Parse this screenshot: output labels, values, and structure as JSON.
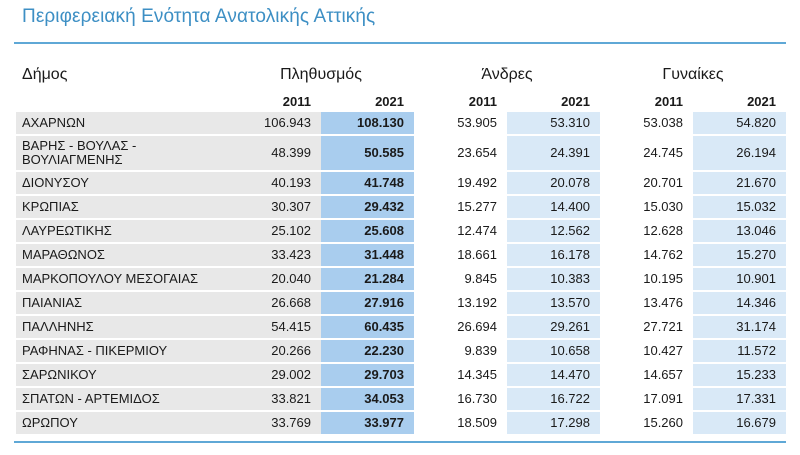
{
  "title": "Περιφερειακή Ενότητα Ανατολικής Αττικής",
  "headers": {
    "municipality": "Δήμος",
    "population": "Πληθυσμός",
    "men": "Άνδρες",
    "women": "Γυναίκες",
    "year_a": "2011",
    "year_b": "2021"
  },
  "colors": {
    "title": "#3d8fc4",
    "rule": "#5fa8d6",
    "pop2021_fill": "#a9cdee",
    "light_blue_fill": "#d9e9f7",
    "grey_fill": "#e8e8e8"
  },
  "rows": [
    {
      "name": "ΑΧΑΡΝΩΝ",
      "pop2011": "106.943",
      "pop2021": "108.130",
      "men2011": "53.905",
      "men2021": "53.310",
      "women2011": "53.038",
      "women2021": "54.820"
    },
    {
      "name": "ΒΑΡΗΣ - ΒΟΥΛΑΣ - ΒΟΥΛΙΑΓΜΕΝΗΣ",
      "pop2011": "48.399",
      "pop2021": "50.585",
      "men2011": "23.654",
      "men2021": "24.391",
      "women2011": "24.745",
      "women2021": "26.194"
    },
    {
      "name": "ΔΙΟΝΥΣΟΥ",
      "pop2011": "40.193",
      "pop2021": "41.748",
      "men2011": "19.492",
      "men2021": "20.078",
      "women2011": "20.701",
      "women2021": "21.670"
    },
    {
      "name": "ΚΡΩΠΙΑΣ",
      "pop2011": "30.307",
      "pop2021": "29.432",
      "men2011": "15.277",
      "men2021": "14.400",
      "women2011": "15.030",
      "women2021": "15.032"
    },
    {
      "name": "ΛΑΥΡΕΩΤΙΚΗΣ",
      "pop2011": "25.102",
      "pop2021": "25.608",
      "men2011": "12.474",
      "men2021": "12.562",
      "women2011": "12.628",
      "women2021": "13.046"
    },
    {
      "name": "ΜΑΡΑΘΩΝΟΣ",
      "pop2011": "33.423",
      "pop2021": "31.448",
      "men2011": "18.661",
      "men2021": "16.178",
      "women2011": "14.762",
      "women2021": "15.270"
    },
    {
      "name": "ΜΑΡΚΟΠΟΥΛΟΥ ΜΕΣΟΓΑΙΑΣ",
      "pop2011": "20.040",
      "pop2021": "21.284",
      "men2011": "9.845",
      "men2021": "10.383",
      "women2011": "10.195",
      "women2021": "10.901"
    },
    {
      "name": "ΠΑΙΑΝΙΑΣ",
      "pop2011": "26.668",
      "pop2021": "27.916",
      "men2011": "13.192",
      "men2021": "13.570",
      "women2011": "13.476",
      "women2021": "14.346"
    },
    {
      "name": "ΠΑΛΛΗΝΗΣ",
      "pop2011": "54.415",
      "pop2021": "60.435",
      "men2011": "26.694",
      "men2021": "29.261",
      "women2011": "27.721",
      "women2021": "31.174"
    },
    {
      "name": "ΡΑΦΗΝΑΣ - ΠΙΚΕΡΜΙΟΥ",
      "pop2011": "20.266",
      "pop2021": "22.230",
      "men2011": "9.839",
      "men2021": "10.658",
      "women2011": "10.427",
      "women2021": "11.572"
    },
    {
      "name": "ΣΑΡΩΝΙΚΟΥ",
      "pop2011": "29.002",
      "pop2021": "29.703",
      "men2011": "14.345",
      "men2021": "14.470",
      "women2011": "14.657",
      "women2021": "15.233"
    },
    {
      "name": "ΣΠΑΤΩΝ - ΑΡΤΕΜΙΔΟΣ",
      "pop2011": "33.821",
      "pop2021": "34.053",
      "men2011": "16.730",
      "men2021": "16.722",
      "women2011": "17.091",
      "women2021": "17.331"
    },
    {
      "name": "ΩΡΩΠΟΥ",
      "pop2011": "33.769",
      "pop2021": "33.977",
      "men2011": "18.509",
      "men2021": "17.298",
      "women2011": "15.260",
      "women2021": "16.679"
    }
  ]
}
